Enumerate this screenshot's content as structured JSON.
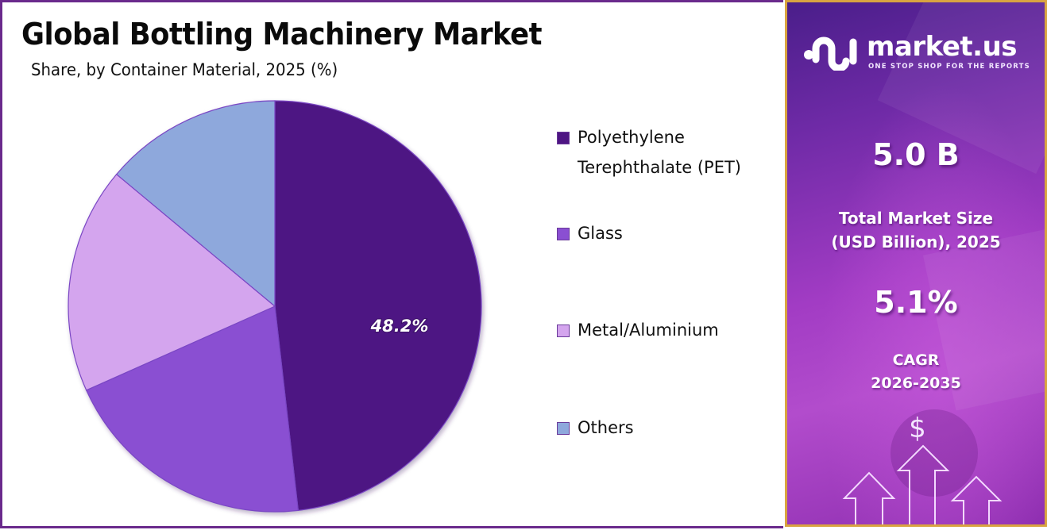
{
  "header": {
    "title": "Global Bottling Machinery Market",
    "subtitle": "Share, by Container Material, 2025 (%)"
  },
  "chart_data": {
    "type": "pie",
    "title": "Global Bottling Machinery Market",
    "subtitle": "Share, by Container Material, 2025 (%)",
    "categories": [
      "Polyethylene Terephthalate (PET)",
      "Glass",
      "Metal/Aluminium",
      "Others"
    ],
    "values": [
      48.2,
      20.1,
      17.8,
      13.9
    ],
    "colors": [
      "#4e1583",
      "#8a4fd2",
      "#d4a5ee",
      "#8ea8dc"
    ],
    "data_labels": [
      "48.2%",
      "",
      "",
      ""
    ],
    "start_angle_deg": 0,
    "direction": "clockwise",
    "legend_position": "right"
  },
  "legend": {
    "items": [
      {
        "label_line1": "Polyethylene",
        "label_line2": "Terephthalate (PET)",
        "color": "#4e1583"
      },
      {
        "label_line1": "Glass",
        "color": "#8a4fd2"
      },
      {
        "label_line1": "Metal/Aluminium",
        "color": "#d4a5ee"
      },
      {
        "label_line1": "Others",
        "color": "#8ea8dc"
      }
    ]
  },
  "pie_label": "48.2%",
  "sidebar": {
    "brand": "market.us",
    "tagline": "ONE STOP SHOP FOR THE REPORTS",
    "market_size_value": "5.0 B",
    "market_size_label_line1": "Total Market Size",
    "market_size_label_line2": "(USD Billion), 2025",
    "cagr_value": "5.1%",
    "cagr_label_line1": "CAGR",
    "cagr_label_line2": "2026-2035",
    "currency_symbol": "$",
    "accent_border": "#d9a441",
    "panel_color": "#8e2eb0"
  }
}
